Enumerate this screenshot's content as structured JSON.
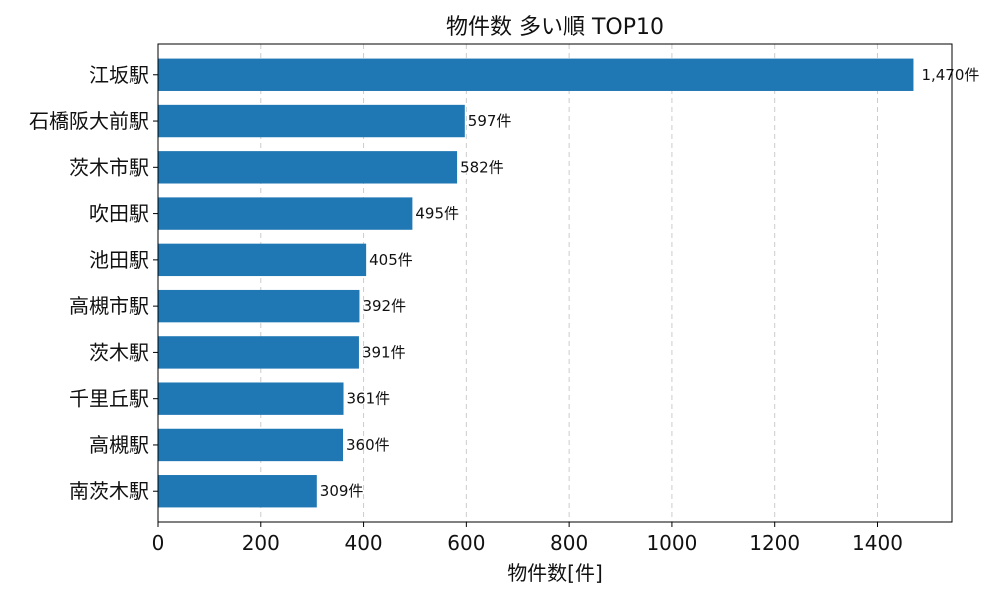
{
  "chart_data": {
    "type": "bar",
    "orientation": "horizontal",
    "title": "物件数 多い順 TOP10",
    "xlabel": "物件数[件]",
    "ylabel": "",
    "xlim": [
      0,
      1545
    ],
    "xticks": [
      0,
      200,
      400,
      600,
      800,
      1000,
      1200,
      1400
    ],
    "grid": "x-dashed",
    "bar_color": "#1f77b4",
    "value_suffix": "件",
    "categories": [
      "江坂駅",
      "石橋阪大前駅",
      "茨木市駅",
      "吹田駅",
      "池田駅",
      "高槻市駅",
      "茨木駅",
      "千里丘駅",
      "高槻駅",
      "南茨木駅"
    ],
    "values": [
      1470,
      597,
      582,
      495,
      405,
      392,
      391,
      361,
      360,
      309
    ],
    "data_labels": [
      "1,470件",
      "597件",
      "582件",
      "495件",
      "405件",
      "392件",
      "391件",
      "361件",
      "360件",
      "309件"
    ]
  }
}
